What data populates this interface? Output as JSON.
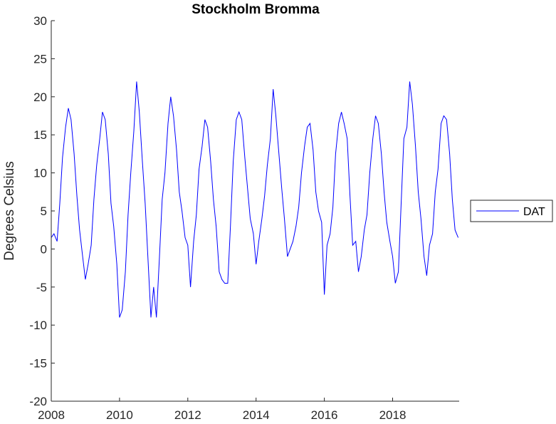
{
  "chart_data": {
    "type": "line",
    "title": "Stockholm Bromma",
    "xlabel": "",
    "ylabel": "Degrees Celsius",
    "xlim": [
      2008,
      2019.95
    ],
    "ylim": [
      -20,
      30
    ],
    "xticks": [
      2008,
      2010,
      2012,
      2014,
      2016,
      2018
    ],
    "yticks": [
      -20,
      -15,
      -10,
      -5,
      0,
      5,
      10,
      15,
      20,
      25,
      30
    ],
    "grid": false,
    "legend_position": "outside-right",
    "series": [
      {
        "name": "DAT",
        "color": "#0000ff",
        "x": [
          2008.0,
          2008.08,
          2008.17,
          2008.25,
          2008.33,
          2008.42,
          2008.5,
          2008.58,
          2008.67,
          2008.75,
          2008.83,
          2008.92,
          2009.0,
          2009.08,
          2009.17,
          2009.25,
          2009.33,
          2009.42,
          2009.5,
          2009.58,
          2009.67,
          2009.75,
          2009.83,
          2009.92,
          2010.0,
          2010.08,
          2010.17,
          2010.25,
          2010.33,
          2010.42,
          2010.5,
          2010.58,
          2010.67,
          2010.75,
          2010.83,
          2010.92,
          2011.0,
          2011.08,
          2011.17,
          2011.25,
          2011.33,
          2011.42,
          2011.5,
          2011.58,
          2011.67,
          2011.75,
          2011.83,
          2011.92,
          2012.0,
          2012.08,
          2012.17,
          2012.25,
          2012.33,
          2012.42,
          2012.5,
          2012.58,
          2012.67,
          2012.75,
          2012.83,
          2012.92,
          2013.0,
          2013.08,
          2013.17,
          2013.25,
          2013.33,
          2013.42,
          2013.5,
          2013.58,
          2013.67,
          2013.75,
          2013.83,
          2013.92,
          2014.0,
          2014.08,
          2014.17,
          2014.25,
          2014.33,
          2014.42,
          2014.5,
          2014.58,
          2014.67,
          2014.75,
          2014.83,
          2014.92,
          2015.0,
          2015.08,
          2015.17,
          2015.25,
          2015.33,
          2015.42,
          2015.5,
          2015.58,
          2015.67,
          2015.75,
          2015.83,
          2015.92,
          2016.0,
          2016.08,
          2016.17,
          2016.25,
          2016.33,
          2016.42,
          2016.5,
          2016.58,
          2016.67,
          2016.75,
          2016.83,
          2016.92,
          2017.0,
          2017.08,
          2017.17,
          2017.25,
          2017.33,
          2017.42,
          2017.5,
          2017.58,
          2017.67,
          2017.75,
          2017.83,
          2017.92,
          2018.0,
          2018.08,
          2018.17,
          2018.25,
          2018.33,
          2018.42,
          2018.5,
          2018.58,
          2018.67,
          2018.75,
          2018.83,
          2018.92,
          2019.0,
          2019.08,
          2019.17,
          2019.25,
          2019.33,
          2019.42,
          2019.5,
          2019.58,
          2019.67,
          2019.75,
          2019.83,
          2019.92
        ],
        "y": [
          1.5,
          2.0,
          1.0,
          6.0,
          12.0,
          16.0,
          18.5,
          17.0,
          12.5,
          7.0,
          2.5,
          -1.0,
          -4.0,
          -2.0,
          0.5,
          6.5,
          11.0,
          14.5,
          18.0,
          17.0,
          12.5,
          6.0,
          3.0,
          -2.0,
          -9.0,
          -8.0,
          -3.0,
          4.5,
          10.0,
          15.5,
          22.0,
          18.0,
          11.5,
          6.0,
          -1.0,
          -9.0,
          -5.0,
          -9.0,
          -1.0,
          6.5,
          10.0,
          16.5,
          20.0,
          17.5,
          13.0,
          7.5,
          5.0,
          1.5,
          0.5,
          -5.0,
          1.0,
          4.5,
          10.5,
          13.5,
          17.0,
          16.0,
          11.5,
          6.5,
          3.0,
          -3.0,
          -4.0,
          -4.5,
          -4.5,
          3.0,
          11.5,
          17.0,
          18.0,
          17.0,
          12.0,
          8.0,
          4.0,
          2.0,
          -2.0,
          1.0,
          4.0,
          7.0,
          11.0,
          14.5,
          21.0,
          17.5,
          12.5,
          8.0,
          4.0,
          -1.0,
          0.0,
          1.0,
          3.0,
          5.5,
          10.0,
          13.5,
          16.0,
          16.5,
          13.0,
          7.5,
          5.0,
          3.5,
          -6.0,
          0.5,
          2.0,
          5.5,
          12.5,
          16.5,
          18.0,
          16.5,
          14.5,
          7.0,
          0.5,
          1.0,
          -3.0,
          -1.0,
          2.5,
          4.5,
          10.0,
          14.5,
          17.5,
          16.5,
          12.5,
          7.5,
          3.5,
          1.0,
          -1.0,
          -4.5,
          -3.0,
          6.0,
          14.5,
          16.0,
          22.0,
          19.0,
          13.5,
          7.5,
          4.0,
          -1.0,
          -3.5,
          0.5,
          2.0,
          7.5,
          10.5,
          16.5,
          17.5,
          17.0,
          12.5,
          6.5,
          2.5,
          1.5
        ]
      }
    ]
  }
}
